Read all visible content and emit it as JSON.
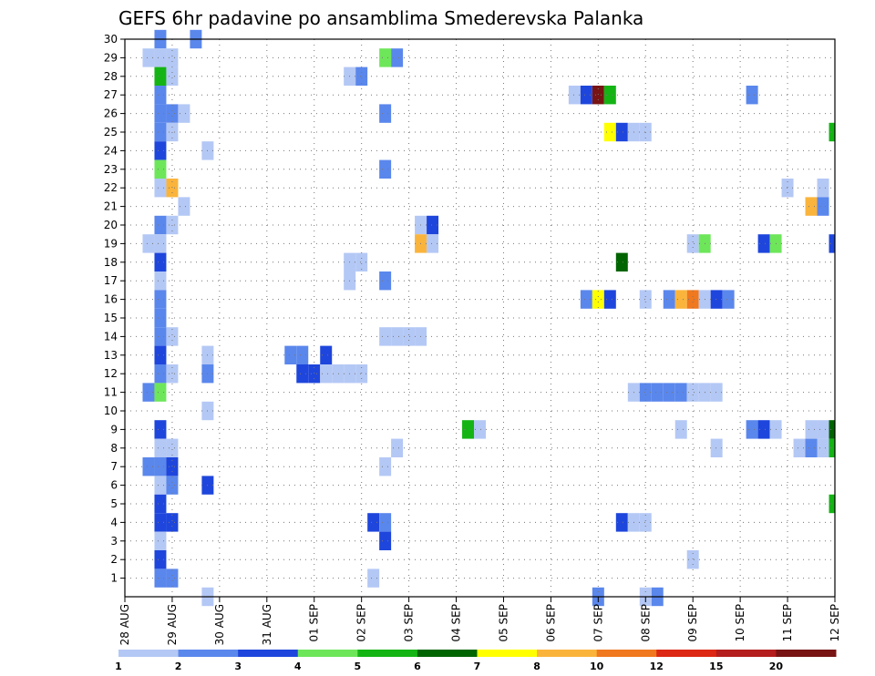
{
  "chart_data": {
    "type": "heatmap",
    "title": "GEFS 6hr padavine po ansamblima Smederevska Palanka",
    "xlabel": "",
    "ylabel": "",
    "x_ticks": [
      "28 AUG",
      "29 AUG",
      "30 AUG",
      "31 AUG",
      "01 SEP",
      "02 SEP",
      "03 SEP",
      "04 SEP",
      "05 SEP",
      "06 SEP",
      "07 SEP",
      "08 SEP",
      "09 SEP",
      "10 SEP",
      "11 SEP",
      "12 SEP"
    ],
    "x_unit": "day index from 28 AUG 00Z, 6-hour steps",
    "y_ticks": [
      1,
      2,
      3,
      4,
      5,
      6,
      7,
      8,
      9,
      10,
      11,
      12,
      13,
      14,
      15,
      16,
      17,
      18,
      19,
      20,
      21,
      22,
      23,
      24,
      25,
      26,
      27,
      28,
      29,
      30
    ],
    "ylim": [
      0,
      30
    ],
    "xlim": [
      0,
      15
    ],
    "grid": true,
    "legend": {
      "position": "bottom",
      "labels": [
        "1",
        "2",
        "3",
        "4",
        "5",
        "6",
        "7",
        "8",
        "10",
        "12",
        "15",
        "20"
      ],
      "colors": [
        "#b4c8f5",
        "#5a87ec",
        "#1e46dc",
        "#6ee65a",
        "#14b414",
        "#006400",
        "#ffff00",
        "#fab43c",
        "#f0781e",
        "#dc2814",
        "#b41e1e",
        "#781414"
      ]
    },
    "cells": [
      [
        0.75,
        30,
        1
      ],
      [
        0.75,
        29,
        0
      ],
      [
        1.5,
        30,
        1
      ],
      [
        0.5,
        29,
        0
      ],
      [
        1.0,
        29,
        0
      ],
      [
        0.75,
        28,
        4
      ],
      [
        1.0,
        28,
        0
      ],
      [
        0.75,
        27,
        1
      ],
      [
        0.75,
        26,
        1
      ],
      [
        1.0,
        26,
        1
      ],
      [
        1.25,
        26,
        0
      ],
      [
        0.75,
        25,
        1
      ],
      [
        1.0,
        25,
        0
      ],
      [
        0.75,
        24,
        2
      ],
      [
        1.75,
        24,
        0
      ],
      [
        0.75,
        23,
        3
      ],
      [
        0.75,
        22,
        0
      ],
      [
        1.0,
        22,
        7
      ],
      [
        1.25,
        21,
        0
      ],
      [
        0.75,
        20,
        1
      ],
      [
        1.0,
        20,
        0
      ],
      [
        0.5,
        19,
        0
      ],
      [
        0.75,
        19,
        0
      ],
      [
        0.75,
        18,
        2
      ],
      [
        0.75,
        17,
        0
      ],
      [
        0.75,
        16,
        1
      ],
      [
        0.75,
        15,
        1
      ],
      [
        0.75,
        14,
        1
      ],
      [
        1.0,
        14,
        0
      ],
      [
        0.75,
        13,
        2
      ],
      [
        1.75,
        13,
        0
      ],
      [
        0.75,
        12,
        1
      ],
      [
        1.0,
        12,
        0
      ],
      [
        1.75,
        12,
        1
      ],
      [
        0.5,
        11,
        1
      ],
      [
        0.75,
        11,
        3
      ],
      [
        1.75,
        10,
        0
      ],
      [
        0.75,
        9,
        2
      ],
      [
        0.75,
        8,
        0
      ],
      [
        1.0,
        8,
        0
      ],
      [
        0.5,
        7,
        1
      ],
      [
        0.75,
        7,
        1
      ],
      [
        1.0,
        7,
        2
      ],
      [
        0.75,
        6,
        0
      ],
      [
        1.0,
        6,
        1
      ],
      [
        1.75,
        6,
        2
      ],
      [
        0.75,
        5,
        2
      ],
      [
        0.75,
        4,
        2
      ],
      [
        1.0,
        4,
        2
      ],
      [
        0.75,
        3,
        0
      ],
      [
        0.75,
        2,
        2
      ],
      [
        0.75,
        1,
        1
      ],
      [
        1.0,
        1,
        1
      ],
      [
        1.75,
        0,
        0
      ],
      [
        4.75,
        28,
        0
      ],
      [
        5.0,
        28,
        1
      ],
      [
        5.5,
        29,
        3
      ],
      [
        5.75,
        29,
        1
      ],
      [
        5.5,
        26,
        1
      ],
      [
        5.5,
        23,
        1
      ],
      [
        4.75,
        18,
        0
      ],
      [
        5.0,
        18,
        0
      ],
      [
        5.5,
        17,
        1
      ],
      [
        4.75,
        17,
        0
      ],
      [
        5.5,
        14,
        0
      ],
      [
        5.75,
        14,
        0
      ],
      [
        6.0,
        14,
        0
      ],
      [
        6.25,
        14,
        0
      ],
      [
        3.5,
        13,
        1
      ],
      [
        3.75,
        13,
        1
      ],
      [
        4.25,
        13,
        2
      ],
      [
        3.75,
        12,
        2
      ],
      [
        4.0,
        12,
        2
      ],
      [
        4.25,
        12,
        0
      ],
      [
        4.5,
        12,
        0
      ],
      [
        4.75,
        12,
        0
      ],
      [
        5.0,
        12,
        0
      ],
      [
        5.75,
        8,
        0
      ],
      [
        5.5,
        7,
        0
      ],
      [
        5.25,
        4,
        2
      ],
      [
        5.5,
        4,
        1
      ],
      [
        5.5,
        3,
        2
      ],
      [
        5.25,
        1,
        0
      ],
      [
        6.25,
        20,
        0
      ],
      [
        6.5,
        20,
        2
      ],
      [
        6.25,
        19,
        7
      ],
      [
        6.5,
        19,
        0
      ],
      [
        7.25,
        9,
        4
      ],
      [
        7.5,
        9,
        0
      ],
      [
        9.5,
        27,
        0
      ],
      [
        9.75,
        27,
        2
      ],
      [
        10.0,
        27,
        11
      ],
      [
        10.25,
        27,
        4
      ],
      [
        10.25,
        25,
        6
      ],
      [
        10.5,
        25,
        2
      ],
      [
        10.75,
        25,
        0
      ],
      [
        11.0,
        25,
        0
      ],
      [
        10.5,
        18,
        5
      ],
      [
        9.75,
        16,
        1
      ],
      [
        10.0,
        16,
        6
      ],
      [
        10.25,
        16,
        2
      ],
      [
        11.0,
        16,
        0
      ],
      [
        11.5,
        16,
        1
      ],
      [
        11.75,
        16,
        7
      ],
      [
        12.0,
        16,
        8
      ],
      [
        12.25,
        16,
        0
      ],
      [
        12.5,
        16,
        2
      ],
      [
        12.75,
        16,
        1
      ],
      [
        10.75,
        11,
        0
      ],
      [
        11.0,
        11,
        1
      ],
      [
        11.25,
        11,
        1
      ],
      [
        11.5,
        11,
        1
      ],
      [
        11.75,
        11,
        1
      ],
      [
        12.0,
        11,
        0
      ],
      [
        12.25,
        11,
        0
      ],
      [
        12.5,
        11,
        0
      ],
      [
        10.5,
        4,
        2
      ],
      [
        10.75,
        4,
        0
      ],
      [
        11.0,
        4,
        0
      ],
      [
        11.25,
        0,
        1
      ],
      [
        10.0,
        0,
        1
      ],
      [
        11.0,
        0,
        0
      ],
      [
        12.0,
        19,
        0
      ],
      [
        12.25,
        19,
        3
      ],
      [
        11.75,
        9,
        0
      ],
      [
        12.5,
        8,
        0
      ],
      [
        12.0,
        2,
        0
      ],
      [
        13.25,
        27,
        1
      ],
      [
        14.0,
        22,
        0
      ],
      [
        14.75,
        22,
        0
      ],
      [
        14.5,
        21,
        7
      ],
      [
        14.75,
        21,
        1
      ],
      [
        13.5,
        19,
        2
      ],
      [
        13.75,
        19,
        3
      ],
      [
        15.0,
        25,
        4
      ],
      [
        15.0,
        19,
        2
      ],
      [
        13.25,
        9,
        1
      ],
      [
        13.5,
        9,
        2
      ],
      [
        13.75,
        9,
        0
      ],
      [
        14.5,
        9,
        0
      ],
      [
        14.75,
        9,
        0
      ],
      [
        15.0,
        9,
        5
      ],
      [
        14.25,
        8,
        0
      ],
      [
        14.5,
        8,
        1
      ],
      [
        14.75,
        8,
        0
      ],
      [
        15.0,
        8,
        4
      ],
      [
        15.0,
        5,
        4
      ]
    ]
  }
}
